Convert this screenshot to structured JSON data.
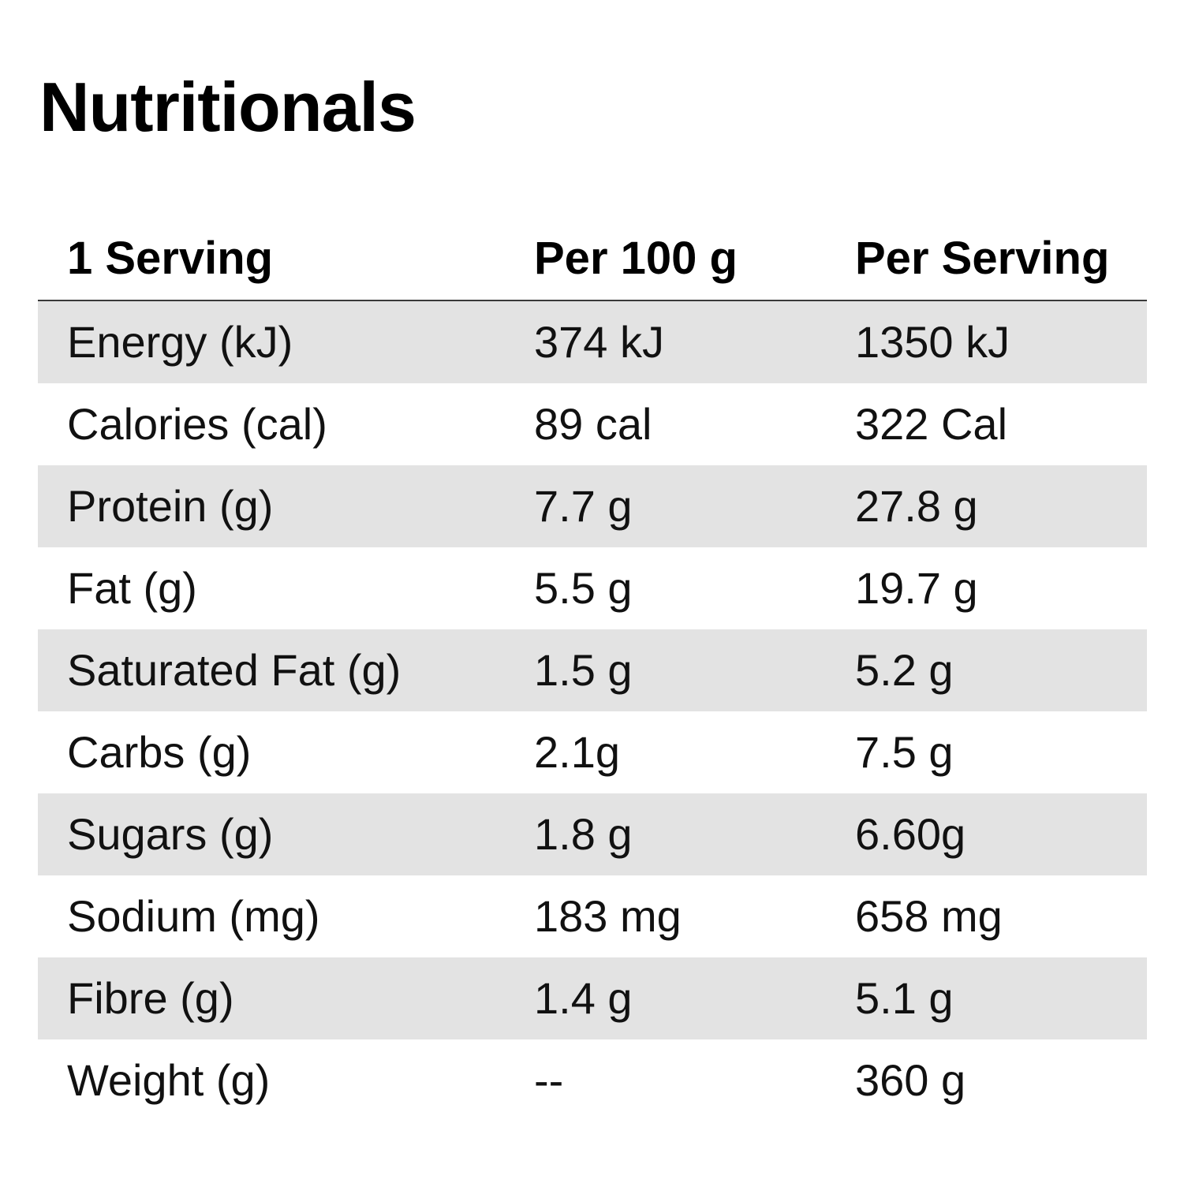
{
  "title": "Nutritionals",
  "table": {
    "headers": [
      "1 Serving",
      "Per 100 g",
      "Per Serving"
    ],
    "rows": [
      {
        "nutrient": "Energy (kJ)",
        "per_100g": "374 kJ",
        "per_serving": "1350 kJ"
      },
      {
        "nutrient": "Calories (cal)",
        "per_100g": "89 cal",
        "per_serving": "322 Cal"
      },
      {
        "nutrient": "Protein (g)",
        "per_100g": "7.7 g",
        "per_serving": "27.8 g"
      },
      {
        "nutrient": "Fat (g)",
        "per_100g": "5.5 g",
        "per_serving": "19.7 g"
      },
      {
        "nutrient": "Saturated Fat (g)",
        "per_100g": "1.5 g",
        "per_serving": "5.2 g"
      },
      {
        "nutrient": "Carbs (g)",
        "per_100g": "2.1g",
        "per_serving": "7.5 g"
      },
      {
        "nutrient": "Sugars (g)",
        "per_100g": "1.8 g",
        "per_serving": "6.60g"
      },
      {
        "nutrient": "Sodium (mg)",
        "per_100g": "183 mg",
        "per_serving": "658 mg"
      },
      {
        "nutrient": "Fibre (g)",
        "per_100g": "1.4 g",
        "per_serving": "5.1 g"
      },
      {
        "nutrient": "Weight (g)",
        "per_100g": "--",
        "per_serving": "360 g"
      }
    ]
  },
  "colors": {
    "shaded_row": "#e3e3e3",
    "text": "#111111",
    "header_rule": "#3a3a3a"
  }
}
